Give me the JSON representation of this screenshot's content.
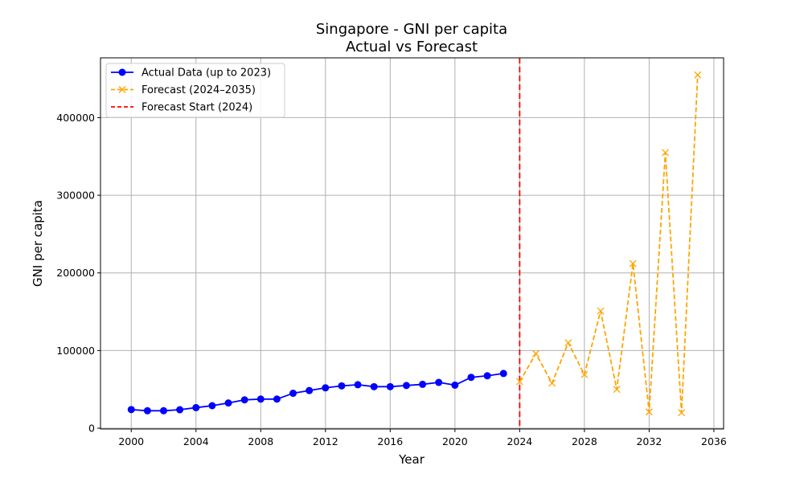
{
  "chart_data": {
    "type": "line",
    "title": "Singapore - GNI per capita",
    "subtitle": "Actual vs Forecast",
    "xlabel": "Year",
    "ylabel": "GNI per capita",
    "xlim": [
      1998.1,
      2036.6
    ],
    "ylim": [
      -1000,
      477000
    ],
    "xticks": [
      2000,
      2004,
      2008,
      2012,
      2016,
      2020,
      2024,
      2028,
      2032,
      2036
    ],
    "yticks": [
      0,
      100000,
      200000,
      300000,
      400000
    ],
    "grid": true,
    "legend_position": "top-left",
    "series": [
      {
        "name": "Actual Data (up to 2023)",
        "color": "#0000ff",
        "line_style": "solid",
        "marker": "circle",
        "x": [
          2000,
          2001,
          2002,
          2003,
          2004,
          2005,
          2006,
          2007,
          2008,
          2009,
          2010,
          2011,
          2012,
          2013,
          2014,
          2015,
          2016,
          2017,
          2018,
          2019,
          2020,
          2021,
          2022,
          2023
        ],
        "values": [
          24000,
          22500,
          22500,
          23800,
          26500,
          29000,
          32500,
          36500,
          37500,
          37500,
          45000,
          48500,
          52000,
          54500,
          56000,
          53500,
          53500,
          55000,
          56500,
          59000,
          55500,
          65500,
          67500,
          70500
        ]
      },
      {
        "name": "Forecast (2024–2035)",
        "color": "#ffa500",
        "line_style": "dashed",
        "marker": "x",
        "x": [
          2024,
          2025,
          2026,
          2027,
          2028,
          2029,
          2030,
          2031,
          2032,
          2033,
          2034,
          2035
        ],
        "values": [
          60000,
          96000,
          58000,
          110000,
          69000,
          151000,
          50000,
          212000,
          21000,
          355000,
          20000,
          455000
        ]
      }
    ],
    "reference_lines": [
      {
        "name": "Forecast Start (2024)",
        "color": "#ff0000",
        "line_style": "dashed",
        "x": 2024
      }
    ]
  }
}
